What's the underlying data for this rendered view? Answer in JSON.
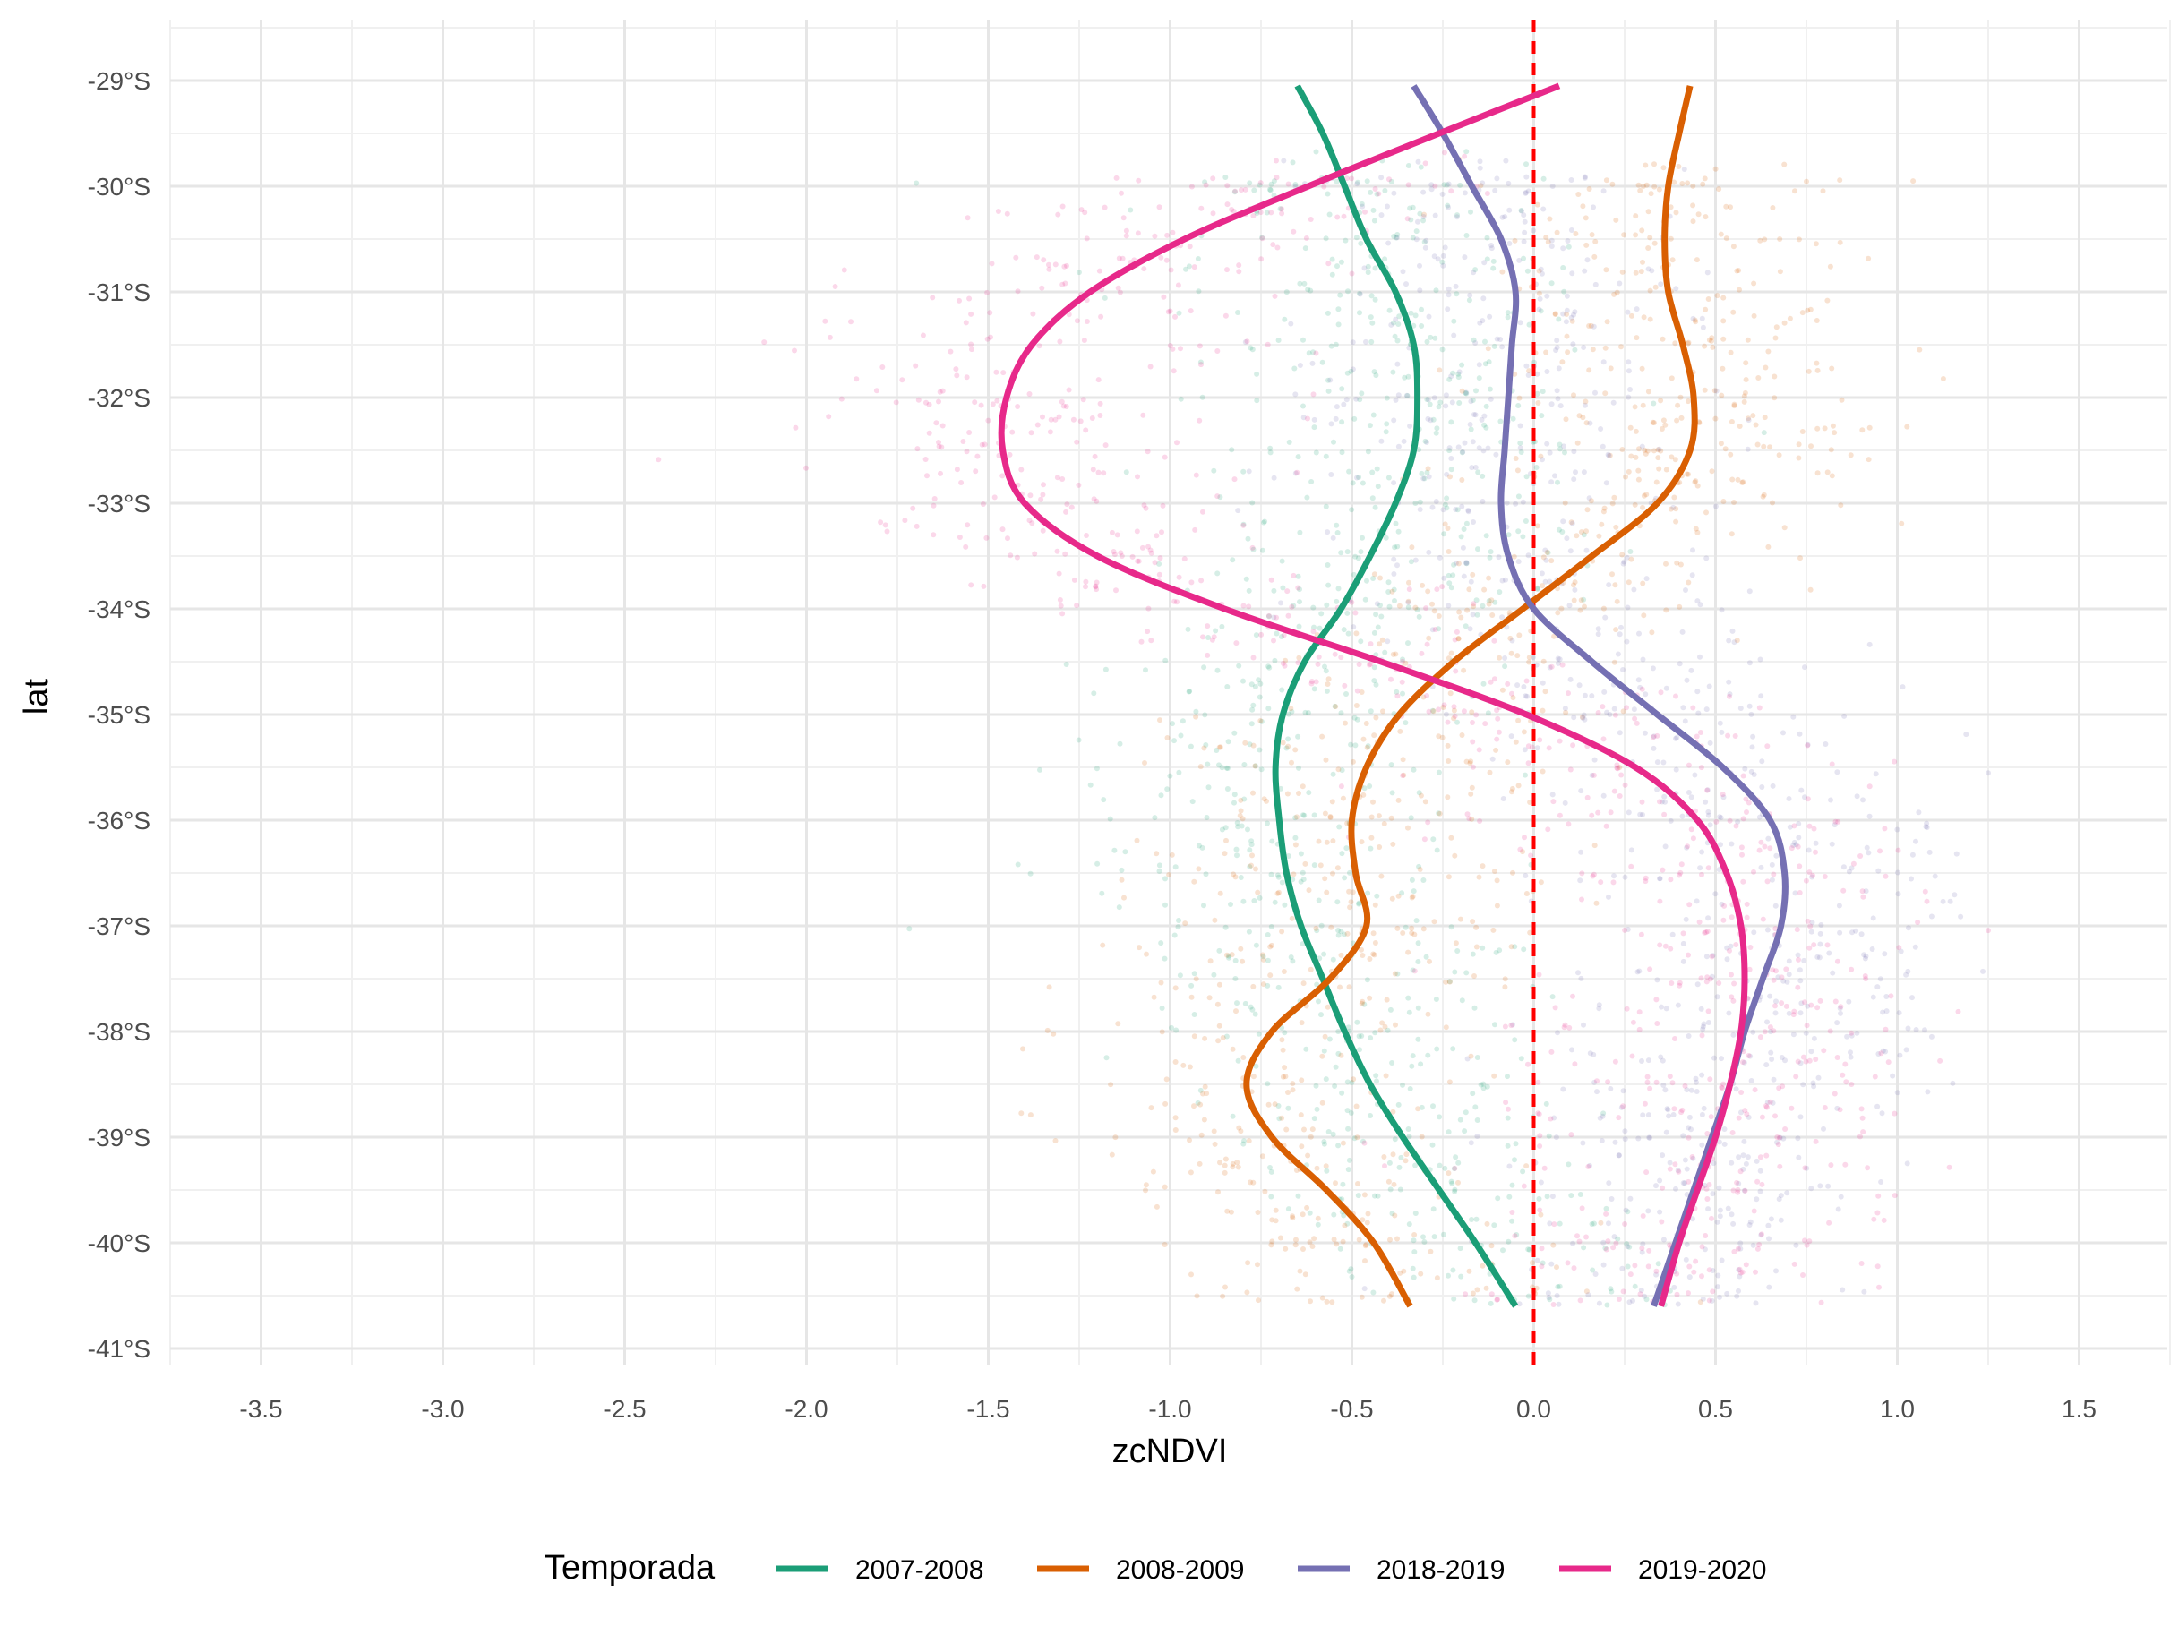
{
  "chart_data": {
    "type": "scatter",
    "title": "",
    "xlabel": "zcNDVI",
    "ylabel": "lat",
    "xlim": [
      -3.75,
      1.75
    ],
    "ylim": [
      -41.25,
      -28.45
    ],
    "x_ticks": [
      -3.5,
      -3.0,
      -2.5,
      -2.0,
      -1.5,
      -1.0,
      -0.5,
      0.0,
      0.5,
      1.0,
      1.5
    ],
    "x_tick_labels": [
      "-3.5",
      "-3.0",
      "-2.5",
      "-2.0",
      "-1.5",
      "-1.0",
      "-0.5",
      "0.0",
      "0.5",
      "1.0",
      "1.5"
    ],
    "y_ticks": [
      -29,
      -30,
      -31,
      -32,
      -33,
      -34,
      -35,
      -36,
      -37,
      -38,
      -39,
      -40,
      -41
    ],
    "y_tick_labels": [
      "-29°S",
      "-30°S",
      "-31°S",
      "-32°S",
      "-33°S",
      "-34°S",
      "-35°S",
      "-36°S",
      "-37°S",
      "-38°S",
      "-39°S",
      "-40°S",
      "-41°S"
    ],
    "grid": true,
    "reference_line": {
      "x": 0.0,
      "style": "dashed",
      "color": "#ff0000"
    },
    "legend": {
      "title": "Temporada",
      "position": "bottom"
    },
    "series": [
      {
        "name": "2007-2008",
        "color": "#1b9e77",
        "smooth": [
          {
            "lat": -29.05,
            "x": -0.65
          },
          {
            "lat": -29.5,
            "x": -0.58
          },
          {
            "lat": -30.0,
            "x": -0.52
          },
          {
            "lat": -30.5,
            "x": -0.46
          },
          {
            "lat": -31.0,
            "x": -0.38
          },
          {
            "lat": -31.5,
            "x": -0.33
          },
          {
            "lat": -32.0,
            "x": -0.32
          },
          {
            "lat": -32.5,
            "x": -0.33
          },
          {
            "lat": -33.0,
            "x": -0.38
          },
          {
            "lat": -33.5,
            "x": -0.45
          },
          {
            "lat": -34.0,
            "x": -0.53
          },
          {
            "lat": -34.5,
            "x": -0.63
          },
          {
            "lat": -35.0,
            "x": -0.69
          },
          {
            "lat": -35.5,
            "x": -0.71
          },
          {
            "lat": -36.0,
            "x": -0.7
          },
          {
            "lat": -36.5,
            "x": -0.68
          },
          {
            "lat": -37.0,
            "x": -0.64
          },
          {
            "lat": -37.5,
            "x": -0.58
          },
          {
            "lat": -38.0,
            "x": -0.52
          },
          {
            "lat": -38.5,
            "x": -0.45
          },
          {
            "lat": -39.0,
            "x": -0.36
          },
          {
            "lat": -39.5,
            "x": -0.26
          },
          {
            "lat": -40.0,
            "x": -0.16
          },
          {
            "lat": -40.6,
            "x": -0.05
          }
        ]
      },
      {
        "name": "2008-2009",
        "color": "#d95f02",
        "smooth": [
          {
            "lat": -29.05,
            "x": 0.43
          },
          {
            "lat": -29.5,
            "x": 0.4
          },
          {
            "lat": -30.0,
            "x": 0.37
          },
          {
            "lat": -30.5,
            "x": 0.36
          },
          {
            "lat": -31.0,
            "x": 0.37
          },
          {
            "lat": -31.5,
            "x": 0.41
          },
          {
            "lat": -32.0,
            "x": 0.44
          },
          {
            "lat": -32.5,
            "x": 0.43
          },
          {
            "lat": -33.0,
            "x": 0.34
          },
          {
            "lat": -33.5,
            "x": 0.16
          },
          {
            "lat": -34.0,
            "x": -0.03
          },
          {
            "lat": -34.5,
            "x": -0.22
          },
          {
            "lat": -35.0,
            "x": -0.37
          },
          {
            "lat": -35.5,
            "x": -0.46
          },
          {
            "lat": -36.0,
            "x": -0.5
          },
          {
            "lat": -36.5,
            "x": -0.49
          },
          {
            "lat": -37.0,
            "x": -0.46
          },
          {
            "lat": -37.5,
            "x": -0.56
          },
          {
            "lat": -38.0,
            "x": -0.72
          },
          {
            "lat": -38.5,
            "x": -0.79
          },
          {
            "lat": -39.0,
            "x": -0.72
          },
          {
            "lat": -39.5,
            "x": -0.57
          },
          {
            "lat": -40.0,
            "x": -0.44
          },
          {
            "lat": -40.6,
            "x": -0.34
          }
        ]
      },
      {
        "name": "2018-2019",
        "color": "#7570b3",
        "smooth": [
          {
            "lat": -29.05,
            "x": -0.33
          },
          {
            "lat": -29.5,
            "x": -0.25
          },
          {
            "lat": -30.0,
            "x": -0.17
          },
          {
            "lat": -30.5,
            "x": -0.09
          },
          {
            "lat": -31.0,
            "x": -0.05
          },
          {
            "lat": -31.5,
            "x": -0.06
          },
          {
            "lat": -32.0,
            "x": -0.07
          },
          {
            "lat": -32.5,
            "x": -0.08
          },
          {
            "lat": -33.0,
            "x": -0.09
          },
          {
            "lat": -33.5,
            "x": -0.07
          },
          {
            "lat": -34.0,
            "x": 0.0
          },
          {
            "lat": -34.5,
            "x": 0.16
          },
          {
            "lat": -35.0,
            "x": 0.34
          },
          {
            "lat": -35.5,
            "x": 0.52
          },
          {
            "lat": -36.0,
            "x": 0.65
          },
          {
            "lat": -36.5,
            "x": 0.69
          },
          {
            "lat": -37.0,
            "x": 0.68
          },
          {
            "lat": -37.5,
            "x": 0.63
          },
          {
            "lat": -38.0,
            "x": 0.58
          },
          {
            "lat": -38.5,
            "x": 0.54
          },
          {
            "lat": -39.0,
            "x": 0.49
          },
          {
            "lat": -39.5,
            "x": 0.44
          },
          {
            "lat": -40.0,
            "x": 0.39
          },
          {
            "lat": -40.6,
            "x": 0.33
          }
        ]
      },
      {
        "name": "2019-2020",
        "color": "#e7298a",
        "smooth": [
          {
            "lat": -29.05,
            "x": 0.07
          },
          {
            "lat": -29.5,
            "x": -0.26
          },
          {
            "lat": -30.0,
            "x": -0.62
          },
          {
            "lat": -30.5,
            "x": -0.96
          },
          {
            "lat": -31.0,
            "x": -1.22
          },
          {
            "lat": -31.5,
            "x": -1.38
          },
          {
            "lat": -32.0,
            "x": -1.45
          },
          {
            "lat": -32.5,
            "x": -1.46
          },
          {
            "lat": -33.0,
            "x": -1.4
          },
          {
            "lat": -33.5,
            "x": -1.2
          },
          {
            "lat": -34.0,
            "x": -0.85
          },
          {
            "lat": -34.5,
            "x": -0.42
          },
          {
            "lat": -35.0,
            "x": -0.02
          },
          {
            "lat": -35.5,
            "x": 0.28
          },
          {
            "lat": -36.0,
            "x": 0.45
          },
          {
            "lat": -36.5,
            "x": 0.53
          },
          {
            "lat": -37.0,
            "x": 0.57
          },
          {
            "lat": -37.5,
            "x": 0.58
          },
          {
            "lat": -38.0,
            "x": 0.57
          },
          {
            "lat": -38.5,
            "x": 0.54
          },
          {
            "lat": -39.0,
            "x": 0.5
          },
          {
            "lat": -39.5,
            "x": 0.45
          },
          {
            "lat": -40.0,
            "x": 0.4
          },
          {
            "lat": -40.6,
            "x": 0.35
          }
        ]
      }
    ]
  }
}
